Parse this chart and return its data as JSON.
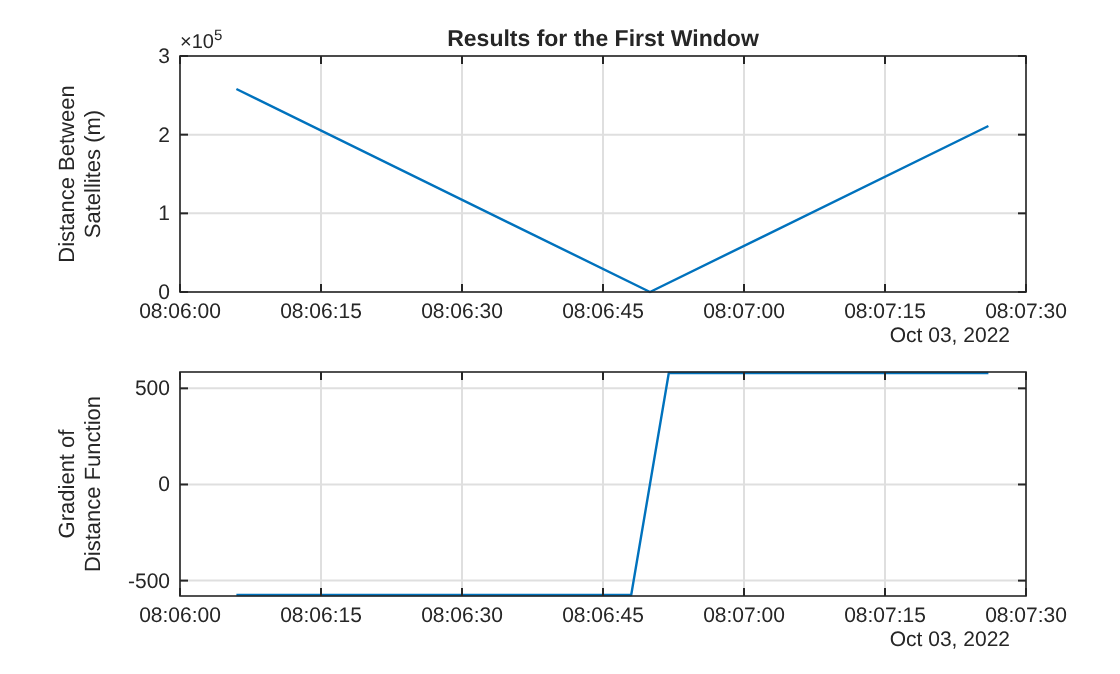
{
  "chart_data": [
    {
      "type": "line",
      "title": "Results for the First Window",
      "ylabel": "Distance Between Satellites (m)",
      "annotations": [
        "×10$^{5}$",
        "Oct 03, 2022"
      ],
      "grid": true,
      "xlim": [
        "2022-10-03T08:06:00",
        "2022-10-03T08:07:30"
      ],
      "xticks": [
        {
          "value": "2022-10-03T08:06:00",
          "label": "08:06:00"
        },
        {
          "value": "2022-10-03T08:06:15",
          "label": "08:06:15"
        },
        {
          "value": "2022-10-03T08:06:30",
          "label": "08:06:30"
        },
        {
          "value": "2022-10-03T08:06:45",
          "label": "08:06:45"
        },
        {
          "value": "2022-10-03T08:07:00",
          "label": "08:07:00"
        },
        {
          "value": "2022-10-03T08:07:15",
          "label": "08:07:15"
        },
        {
          "value": "2022-10-03T08:07:30",
          "label": "08:07:30"
        }
      ],
      "ylim": [
        0,
        3
      ],
      "yticks": [
        0,
        1,
        2,
        3
      ],
      "series": [
        {
          "color": "#0072bd",
          "x": [
            "2022-10-03T08:06:06",
            "2022-10-03T08:06:50",
            "2022-10-03T08:07:26"
          ],
          "values": [
            2.58,
            0,
            2.11
          ]
        }
      ]
    },
    {
      "type": "line",
      "ylabel": "Gradient of Distance Function",
      "annotations": [
        "Oct 03, 2022"
      ],
      "grid": true,
      "xlim": [
        "2022-10-03T08:06:00",
        "2022-10-03T08:07:30"
      ],
      "xticks": [
        {
          "value": "2022-10-03T08:06:00",
          "label": "08:06:00"
        },
        {
          "value": "2022-10-03T08:06:15",
          "label": "08:06:15"
        },
        {
          "value": "2022-10-03T08:06:30",
          "label": "08:06:30"
        },
        {
          "value": "2022-10-03T08:06:45",
          "label": "08:06:45"
        },
        {
          "value": "2022-10-03T08:07:00",
          "label": "08:07:00"
        },
        {
          "value": "2022-10-03T08:07:15",
          "label": "08:07:15"
        },
        {
          "value": "2022-10-03T08:07:30",
          "label": "08:07:30"
        }
      ],
      "ylim": [
        -580,
        585
      ],
      "yticks": [
        -500,
        0,
        500
      ],
      "series": [
        {
          "color": "#0072bd",
          "x": [
            "2022-10-03T08:06:06",
            "2022-10-03T08:06:48",
            "2022-10-03T08:06:52",
            "2022-10-03T08:07:26"
          ],
          "values": [
            -575,
            -575,
            580,
            580
          ]
        }
      ]
    }
  ]
}
